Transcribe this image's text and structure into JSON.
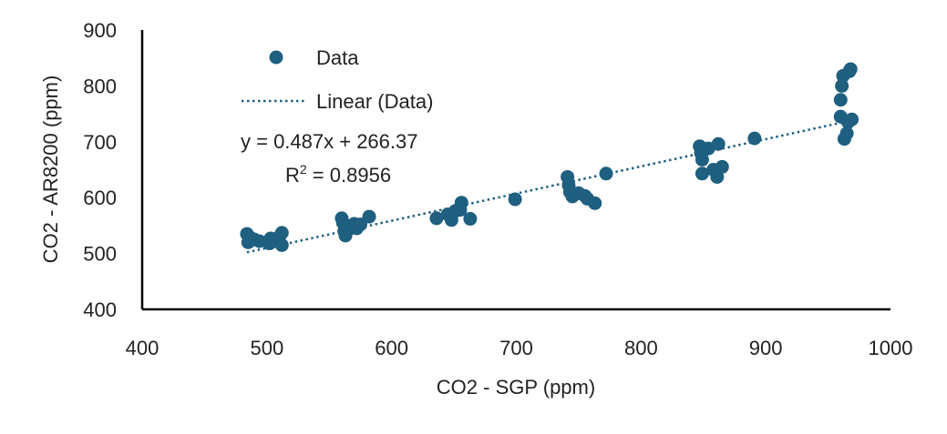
{
  "chart_data": {
    "type": "scatter",
    "title": "",
    "xlabel": "CO2 -  SGP (ppm)",
    "ylabel": "CO2 - AR8200 (ppm)",
    "xlim": [
      400,
      1000
    ],
    "ylim": [
      400,
      900
    ],
    "xticks": [
      400,
      500,
      600,
      700,
      800,
      900,
      1000
    ],
    "yticks": [
      400,
      500,
      600,
      700,
      800,
      900
    ],
    "grid": false,
    "legend": {
      "placement": "top-left",
      "entries": [
        "Data",
        "Linear (Data)"
      ]
    },
    "color": "#1f5f80",
    "series": [
      {
        "name": "Data",
        "points": [
          [
            484,
            535
          ],
          [
            485,
            520
          ],
          [
            487,
            528
          ],
          [
            490,
            525
          ],
          [
            494,
            522
          ],
          [
            502,
            518
          ],
          [
            503,
            527
          ],
          [
            506,
            522
          ],
          [
            510,
            530
          ],
          [
            512,
            537
          ],
          [
            512,
            515
          ],
          [
            560,
            563
          ],
          [
            561,
            555
          ],
          [
            562,
            540
          ],
          [
            563,
            532
          ],
          [
            565,
            548
          ],
          [
            567,
            545
          ],
          [
            570,
            553
          ],
          [
            572,
            545
          ],
          [
            575,
            552
          ],
          [
            582,
            566
          ],
          [
            636,
            563
          ],
          [
            645,
            570
          ],
          [
            648,
            560
          ],
          [
            651,
            576
          ],
          [
            655,
            578
          ],
          [
            656,
            591
          ],
          [
            663,
            562
          ],
          [
            699,
            597
          ],
          [
            741,
            637
          ],
          [
            742,
            622
          ],
          [
            743,
            610
          ],
          [
            745,
            602
          ],
          [
            750,
            608
          ],
          [
            755,
            603
          ],
          [
            757,
            598
          ],
          [
            763,
            590
          ],
          [
            772,
            643
          ],
          [
            847,
            692
          ],
          [
            848,
            680
          ],
          [
            849,
            668
          ],
          [
            849,
            643
          ],
          [
            852,
            687
          ],
          [
            854,
            688
          ],
          [
            858,
            650
          ],
          [
            861,
            637
          ],
          [
            862,
            696
          ],
          [
            865,
            655
          ],
          [
            891,
            706
          ],
          [
            960,
            775
          ],
          [
            960,
            745
          ],
          [
            961,
            800
          ],
          [
            962,
            818
          ],
          [
            963,
            705
          ],
          [
            965,
            715
          ],
          [
            966,
            735
          ],
          [
            967,
            826
          ],
          [
            968,
            830
          ],
          [
            969,
            740
          ]
        ]
      }
    ],
    "trendline": {
      "name": "Linear (Data)",
      "type": "linear",
      "slope": 0.487,
      "intercept": 266.37,
      "x_range": [
        484,
        968
      ],
      "equation": "y = 0.487x + 266.37",
      "r2_prefix": "R",
      "r2_superscript": "2",
      "r2_value": " = 0.8956"
    }
  }
}
